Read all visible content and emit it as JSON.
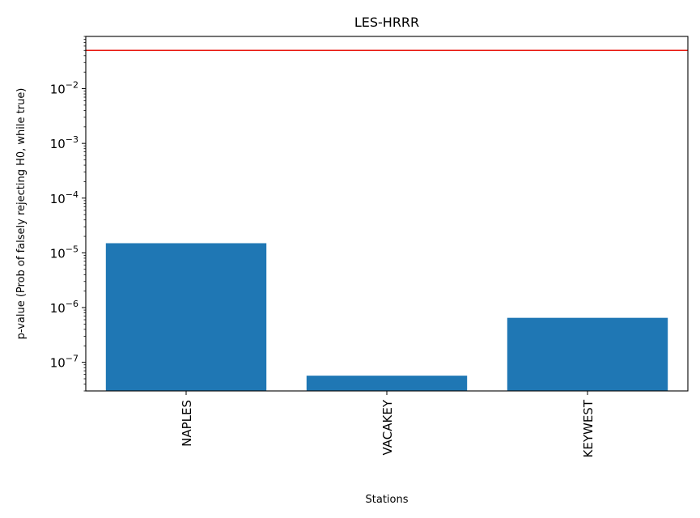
{
  "chart_data": {
    "type": "bar",
    "title": "LES-HRRR",
    "xlabel": "Stations",
    "ylabel": "p-value (Prob of falsely rejecting H0, while true)",
    "yscale": "log",
    "ylim": [
      3e-08,
      0.09
    ],
    "categories": [
      "NAPLES",
      "VACAKEY",
      "KEYWEST"
    ],
    "values": [
      1.5e-05,
      5.7e-08,
      6.5e-07
    ],
    "bar_color": "#1f77b4",
    "reference_line": {
      "y": 0.05,
      "color": "#e8170f"
    },
    "yticks": [
      {
        "value": 1e-07,
        "base": "10",
        "exp": "−7"
      },
      {
        "value": 1e-06,
        "base": "10",
        "exp": "−6"
      },
      {
        "value": 1e-05,
        "base": "10",
        "exp": "−5"
      },
      {
        "value": 0.0001,
        "base": "10",
        "exp": "−4"
      },
      {
        "value": 0.001,
        "base": "10",
        "exp": "−3"
      },
      {
        "value": 0.01,
        "base": "10",
        "exp": "−2"
      }
    ],
    "grid": false,
    "legend": "none"
  }
}
